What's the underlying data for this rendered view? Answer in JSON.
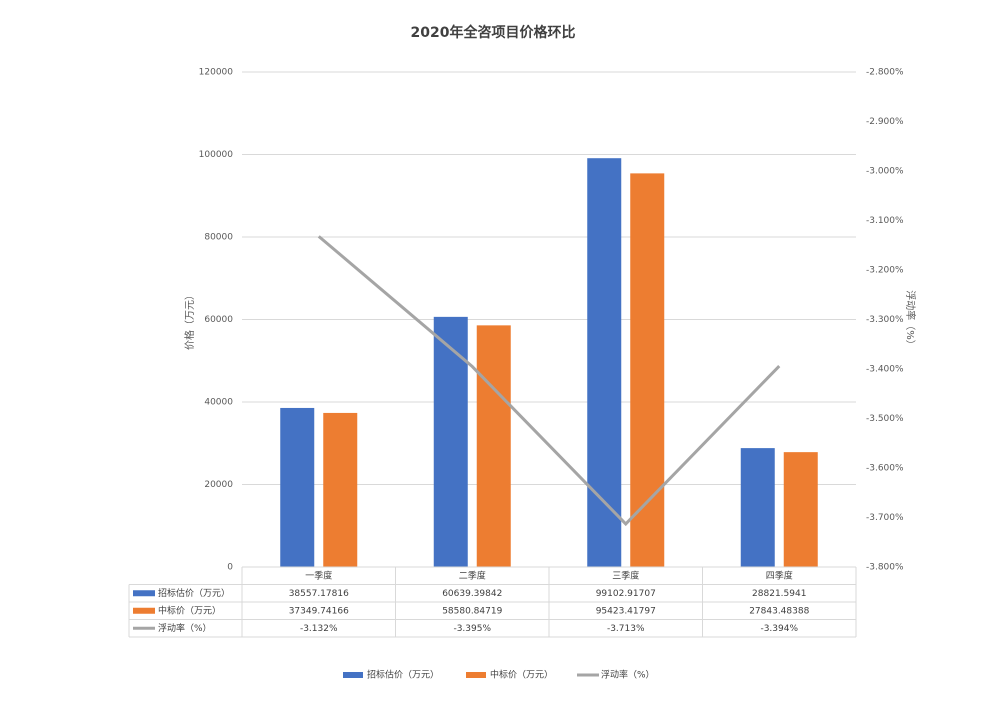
{
  "chart_data": {
    "type": "bar-line",
    "title": "2020年全咨项目价格环比",
    "categories": [
      "一季度",
      "二季度",
      "三季度",
      "四季度"
    ],
    "series": [
      {
        "name": "招标估价（万元）",
        "color": "#4472c4",
        "values": [
          38557.17816,
          60639.39842,
          99102.91707,
          28821.5941
        ]
      },
      {
        "name": "中标价（万元）",
        "color": "#ed7d31",
        "values": [
          37349.74166,
          58580.84719,
          95423.41797,
          27843.48388
        ]
      },
      {
        "name": "浮动率（%）",
        "color": "#a5a5a5",
        "type": "line",
        "axis": "y2",
        "values": [
          -3.132,
          -3.395,
          -3.713,
          -3.394
        ],
        "value_labels": [
          "-3.132%",
          "-3.395%",
          "-3.713%",
          "-3.394%"
        ]
      }
    ],
    "y_label": "价格（万元）",
    "y2_label": "浮动率（%）",
    "ylim": [
      0,
      120000
    ],
    "yticks": [
      0,
      20000,
      40000,
      60000,
      80000,
      100000,
      120000
    ],
    "y2lim": [
      -3.8,
      -2.8
    ],
    "y2ticks": [
      {
        "value": -2.8,
        "label": "-2.800%"
      },
      {
        "value": -2.9,
        "label": "-2.900%"
      },
      {
        "value": -3.0,
        "label": "-3.000%"
      },
      {
        "value": -3.1,
        "label": "-3.100%"
      },
      {
        "value": -3.2,
        "label": "-3.200%"
      },
      {
        "value": -3.3,
        "label": "-3.300%"
      },
      {
        "value": -3.4,
        "label": "-3.400%"
      },
      {
        "value": -3.5,
        "label": "-3.500%"
      },
      {
        "value": -3.6,
        "label": "-3.600%"
      },
      {
        "value": -3.7,
        "label": "-3.700%"
      },
      {
        "value": -3.8,
        "label": "-3.800%"
      }
    ],
    "grid": true,
    "legend": "bottom"
  }
}
